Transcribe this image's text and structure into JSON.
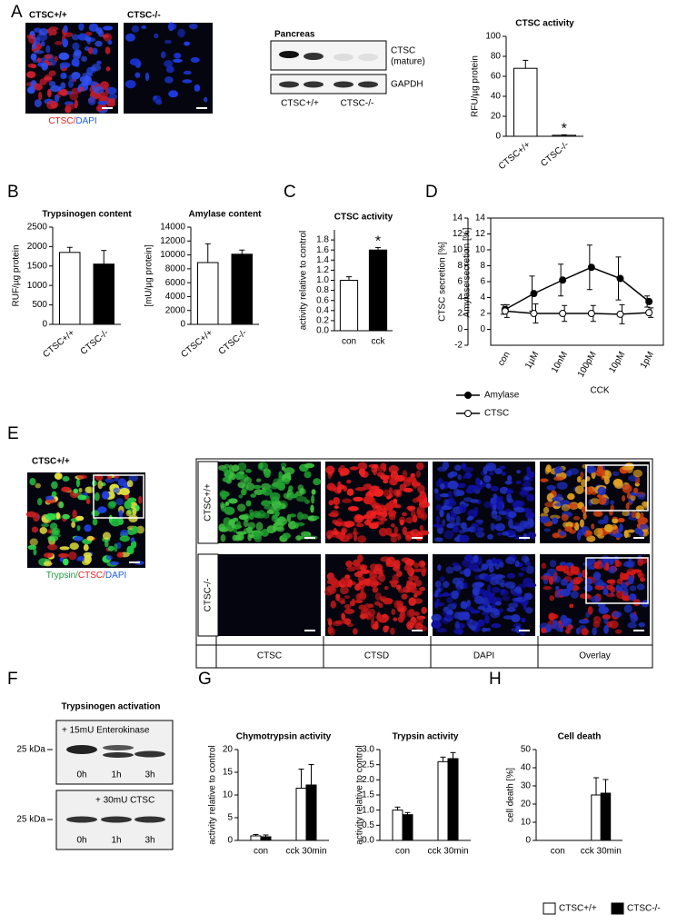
{
  "panel_labels": [
    "A",
    "B",
    "C",
    "D",
    "E",
    "F",
    "G",
    "H"
  ],
  "panel_a": {
    "genotypes": [
      "CTSC+/+",
      "CTSC-/-"
    ],
    "stain": [
      "CTSC/",
      "DAPI"
    ]
  },
  "blot": {
    "title": "Pancreas",
    "band_labels": [
      "CTSC",
      "(mature)",
      "GAPDH"
    ],
    "lanes": [
      "CTSC+/+",
      "CTSC-/-"
    ]
  },
  "panel_e": {
    "genotype": "CTSC+/+",
    "stain": [
      "Trypsin/",
      "CTSC/",
      "DAPI"
    ],
    "rows": [
      "CTSC+/+",
      "CTSC-/-"
    ],
    "columns": [
      "CTSC",
      "CTSD",
      "DAPI",
      "Overlay"
    ]
  },
  "panel_f": {
    "title": "Trypsinogen activation",
    "markers": [
      "25 kDa",
      "25 kDa"
    ],
    "blots": [
      {
        "treatment": "+ 15mU Enterokinase",
        "times": [
          "0h",
          "1h",
          "3h"
        ]
      },
      {
        "treatment": "+ 30mU CTSC",
        "times": [
          "0h",
          "1h",
          "3h"
        ]
      }
    ]
  },
  "chart_data": [
    {
      "type": "bar",
      "title": "CTSC activity",
      "ylabel": "RFU/µg protein",
      "categories": [
        "CTSC+/+",
        "CTSC-/-"
      ],
      "values": [
        68,
        1
      ],
      "errors": [
        8,
        0.5
      ],
      "colors": [
        "#ffffff",
        "#ffffff"
      ],
      "ylim": [
        0,
        100
      ],
      "yticks": [
        0,
        20,
        40,
        60,
        80,
        100
      ],
      "annotations": [
        "*"
      ]
    },
    {
      "type": "bar",
      "title": "Trypsinogen content",
      "ylabel": "RUF/µg protein",
      "categories": [
        "CTSC+/+",
        "CTSC-/-"
      ],
      "values": [
        1850,
        1550
      ],
      "errors": [
        130,
        350
      ],
      "colors": [
        "#ffffff",
        "#000000"
      ],
      "ylim": [
        0,
        2500
      ],
      "yticks": [
        0,
        500,
        1000,
        1500,
        2000,
        2500
      ]
    },
    {
      "type": "bar",
      "title": "Amylase content",
      "ylabel": "[mU/µg protein]",
      "categories": [
        "CTSC+/+",
        "CTSC-/-"
      ],
      "values": [
        8900,
        10100
      ],
      "errors": [
        2700,
        600
      ],
      "colors": [
        "#ffffff",
        "#000000"
      ],
      "ylim": [
        0,
        14000
      ],
      "yticks": [
        0,
        2000,
        4000,
        6000,
        8000,
        10000,
        12000,
        14000
      ]
    },
    {
      "type": "bar",
      "title": "CTSC activity",
      "ylabel": "activity relative to control",
      "categories": [
        "con",
        "cck"
      ],
      "values": [
        1.0,
        1.6
      ],
      "errors": [
        0.07,
        0.05
      ],
      "colors": [
        "#ffffff",
        "#000000"
      ],
      "ylim": [
        0,
        2
      ],
      "yticks": [
        {
          "value": 0,
          "label": "0.0"
        },
        0.2,
        0.4,
        0.6,
        0.8,
        {
          "value": 1,
          "label": "1.0"
        },
        1.2,
        1.4,
        1.6,
        1.8
      ],
      "annotations": [
        "*"
      ]
    },
    {
      "type": "line",
      "xlabel": "CCK",
      "ylabel": "CTSC secretion [%]",
      "y2label": "Amylase secretion [%]",
      "categories": [
        "con",
        "1µM",
        "10nM",
        "100pM",
        "10pM",
        "1pM"
      ],
      "series": [
        {
          "name": "Amylase",
          "axis": "y2",
          "color": "#000000",
          "values": [
            2.5,
            4.5,
            6.2,
            7.8,
            6.4,
            3.5
          ],
          "errors": [
            0.6,
            2.2,
            2.0,
            2.8,
            2.7,
            0.7
          ]
        },
        {
          "name": "CTSC",
          "color": "#ffffff",
          "values": [
            2.3,
            2.0,
            2.0,
            2.0,
            1.9,
            2.1
          ],
          "errors": [
            0.8,
            1.2,
            1.0,
            1.0,
            1.2,
            0.6
          ]
        }
      ],
      "ylim": [
        -2,
        14
      ],
      "yticks": [
        -2,
        0,
        2,
        4,
        6,
        8,
        10,
        12,
        14
      ],
      "y2lim": [
        -2,
        14
      ],
      "y2ticks": [
        0,
        2,
        4,
        6,
        8,
        10,
        12,
        14
      ]
    },
    {
      "type": "grouped",
      "title": "Chymotrypsin activity",
      "ylabel": "activity relative to control",
      "categories": [
        "con",
        "cck 30min"
      ],
      "series": [
        {
          "name": "CTSC+/+",
          "color": "#ffffff",
          "values": [
            1.0,
            11.5
          ],
          "errors": [
            0.3,
            4.2
          ]
        },
        {
          "name": "CTSC-/-",
          "color": "#000000",
          "values": [
            0.8,
            12.2
          ],
          "errors": [
            0.4,
            4.5
          ]
        }
      ],
      "ylim": [
        0,
        20
      ],
      "yticks": [
        0,
        5,
        10,
        15,
        20
      ]
    },
    {
      "type": "grouped",
      "title": "Trypsin activity",
      "ylabel": "activity relative to control",
      "categories": [
        "con",
        "cck 30min"
      ],
      "series": [
        {
          "name": "CTSC+/+",
          "color": "#ffffff",
          "values": [
            1.0,
            2.6
          ],
          "errors": [
            0.1,
            0.15
          ]
        },
        {
          "name": "CTSC-/-",
          "color": "#000000",
          "values": [
            0.85,
            2.7
          ],
          "errors": [
            0.07,
            0.2
          ]
        }
      ],
      "ylim": [
        0,
        3
      ],
      "yticks": [
        {
          "value": 0,
          "label": "0.0"
        },
        0.5,
        {
          "value": 1,
          "label": "1.0"
        },
        1.5,
        {
          "value": 2,
          "label": "2.0"
        },
        2.5,
        {
          "value": 3,
          "label": "3.0"
        }
      ]
    },
    {
      "type": "grouped",
      "title": "Cell death",
      "ylabel": "cell death [%]",
      "categories": [
        "con",
        "cck 30min"
      ],
      "series": [
        {
          "name": "CTSC+/+",
          "color": "#ffffff",
          "values": [
            0,
            25
          ],
          "errors": [
            0,
            9.5
          ]
        },
        {
          "name": "CTSC-/-",
          "color": "#000000",
          "values": [
            0,
            26
          ],
          "errors": [
            0,
            7.5
          ]
        }
      ],
      "ylim": [
        0,
        50
      ],
      "yticks": [
        0,
        10,
        20,
        30,
        40,
        50
      ]
    }
  ]
}
